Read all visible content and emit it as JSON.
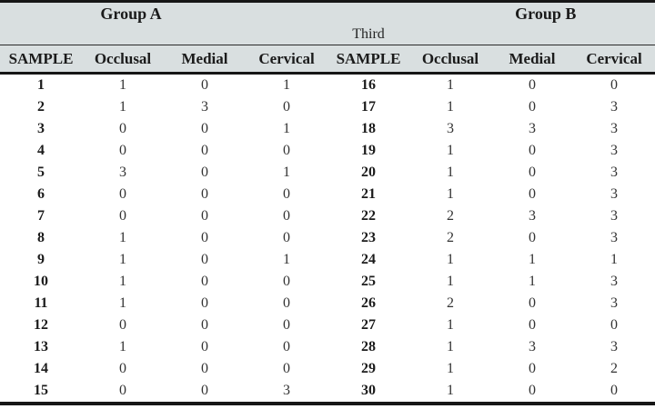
{
  "table": {
    "group_a_label": "Group A",
    "group_b_label": "Group B",
    "third_label": "Third",
    "columns": [
      "SAMPLE",
      "Occlusal",
      "Medial",
      "Cervical",
      "SAMPLE",
      "Occlusal",
      "Medial",
      "Cervical"
    ],
    "rows": [
      [
        "1",
        "1",
        "0",
        "1",
        "16",
        "1",
        "0",
        "0"
      ],
      [
        "2",
        "1",
        "3",
        "0",
        "17",
        "1",
        "0",
        "3"
      ],
      [
        "3",
        "0",
        "0",
        "1",
        "18",
        "3",
        "3",
        "3"
      ],
      [
        "4",
        "0",
        "0",
        "0",
        "19",
        "1",
        "0",
        "3"
      ],
      [
        "5",
        "3",
        "0",
        "1",
        "20",
        "1",
        "0",
        "3"
      ],
      [
        "6",
        "0",
        "0",
        "0",
        "21",
        "1",
        "0",
        "3"
      ],
      [
        "7",
        "0",
        "0",
        "0",
        "22",
        "2",
        "3",
        "3"
      ],
      [
        "8",
        "1",
        "0",
        "0",
        "23",
        "2",
        "0",
        "3"
      ],
      [
        "9",
        "1",
        "0",
        "1",
        "24",
        "1",
        "1",
        "1"
      ],
      [
        "10",
        "1",
        "0",
        "0",
        "25",
        "1",
        "1",
        "3"
      ],
      [
        "11",
        "1",
        "0",
        "0",
        "26",
        "2",
        "0",
        "3"
      ],
      [
        "12",
        "0",
        "0",
        "0",
        "27",
        "1",
        "0",
        "0"
      ],
      [
        "13",
        "1",
        "0",
        "0",
        "28",
        "1",
        "3",
        "3"
      ],
      [
        "14",
        "0",
        "0",
        "0",
        "29",
        "1",
        "0",
        "2"
      ],
      [
        "15",
        "0",
        "0",
        "3",
        "30",
        "1",
        "0",
        "0"
      ]
    ]
  },
  "colors": {
    "header_bg": "#d9dfe0",
    "rule": "#161616",
    "text": "#333333"
  }
}
